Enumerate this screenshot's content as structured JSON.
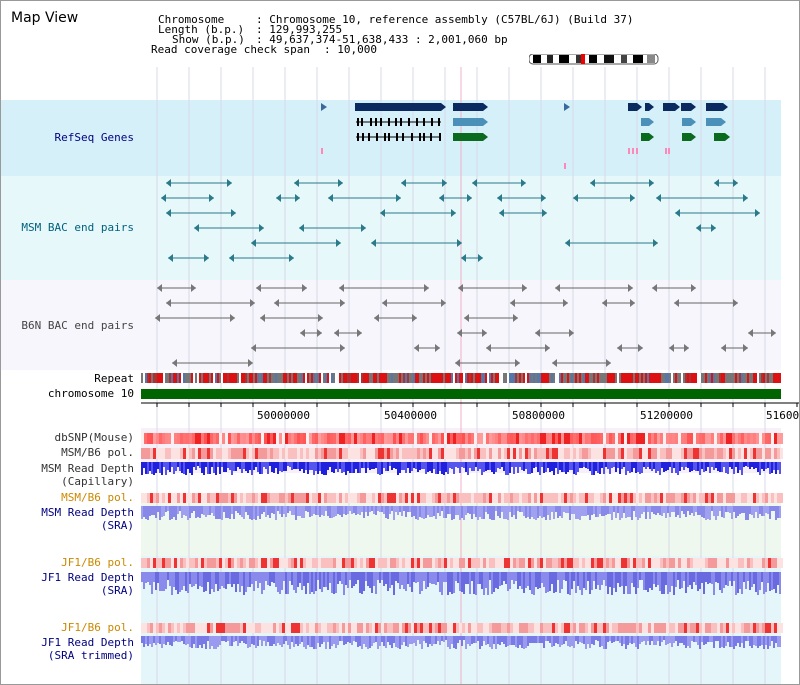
{
  "page": {
    "title": "Map View",
    "info": {
      "chromosome_key": "Chromosome",
      "chromosome_value": ": Chromosome 10, reference assembly (C57BL/6J) (Build 37)",
      "length_key": "Length (b.p.)",
      "length_value": ": 129,993,255",
      "show_key": "Show (b.p.)",
      "show_value": ": 49,637,374-51,638,433 : 2,001,060 bp",
      "coverage_key": "Read coverage check span",
      "coverage_value": ": 10,000"
    }
  },
  "tracks": {
    "refseq": "RefSeq Genes",
    "msm_bac": "MSM BAC end pairs",
    "b6n_bac": "B6N BAC end pairs",
    "repeat": "Repeat",
    "chromosome": "chromosome 10",
    "dbsnp": "dbSNP(Mouse)",
    "msm_pol_1": "MSM/B6 pol.",
    "msm_depth_cap_1": "MSM Read Depth",
    "msm_depth_cap_2": "(Capillary)",
    "msm_pol_2": "MSM/B6 pol.",
    "msm_depth_sra_1": "MSM Read Depth",
    "msm_depth_sra_2": "(SRA)",
    "jf1_pol_1": "JF1/B6 pol.",
    "jf1_depth_1": "JF1 Read Depth",
    "jf1_depth_2": "(SRA)",
    "jf1_pol_2": "JF1/B6 pol.",
    "jf1_trim_1": "JF1 Read Depth",
    "jf1_trim_2": "(SRA trimmed)"
  },
  "scale": {
    "ticks": [
      "50000000",
      "50400000",
      "50800000",
      "51200000",
      "51600"
    ]
  },
  "colors": {
    "navy_label": "#000080",
    "orange_label": "#cc8800",
    "teal_label": "#006080",
    "refseq_bg": "#d6f0fa",
    "bac_bg": "#e6f8fa",
    "gene_dark": "#0a2a60",
    "gene_mid": "#4a90b8",
    "gene_green": "#0a6a1e",
    "chrom_green": "#006400"
  }
}
